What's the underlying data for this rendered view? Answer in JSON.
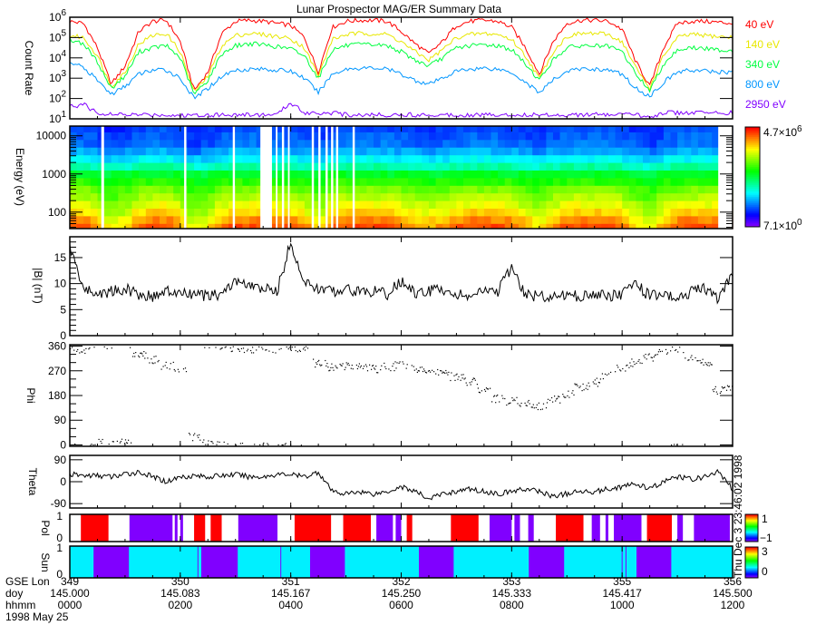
{
  "title": "Lunar Prospector MAG/ER Summary Data",
  "footer": {
    "row_labels": [
      "GSE Lon",
      "doy",
      "hhmm"
    ],
    "date": "1998 May 25",
    "gse_lon": [
      "349",
      "350",
      "351",
      "352",
      "353",
      "355",
      "356"
    ],
    "doy": [
      "145.000",
      "145.083",
      "145.167",
      "145.250",
      "145.333",
      "145.417",
      "145.500"
    ],
    "hhmm": [
      "0000",
      "0200",
      "0400",
      "0600",
      "0800",
      "1000",
      "1200"
    ]
  },
  "timestamp": "Thu Dec 3 23:46:02 1998",
  "colors": {
    "40": "#ff0000",
    "140": "#e8e800",
    "340": "#00ff40",
    "800": "#0096ff",
    "2950": "#8000ff",
    "pol_pos": "#ff0000",
    "pol_neg": "#8000ff",
    "sun_lit": "#00f0ff",
    "sun_shadow": "#8000ff"
  },
  "chart_data": [
    {
      "type": "line",
      "panel": "count-rate",
      "ylabel": "Count Rate",
      "yscale": "log",
      "ylim_log10": [
        1,
        6
      ],
      "ytick_labels": [
        "10",
        "10",
        "10",
        "10",
        "10",
        "10"
      ],
      "ytick_exponents": [
        "1",
        "2",
        "3",
        "4",
        "5",
        "6"
      ],
      "x_hours_step": 0.25,
      "series": [
        {
          "name": "40 eV",
          "key": "40",
          "log10_values": [
            5.8,
            5.7,
            4.5,
            2.7,
            3.6,
            5.3,
            5.8,
            5.85,
            4.8,
            2.4,
            3.3,
            5.2,
            5.8,
            5.85,
            5.8,
            5.7,
            5.6,
            5.0,
            3.3,
            5.5,
            5.8,
            5.85,
            5.85,
            5.8,
            5.3,
            4.7,
            4.2,
            4.8,
            5.6,
            5.8,
            5.85,
            5.8,
            5.5,
            4.5,
            3.2,
            4.8,
            5.7,
            5.85,
            5.85,
            5.8,
            5.4,
            3.8,
            2.6,
            4.5,
            5.7,
            5.8,
            5.8,
            5.75,
            5.7
          ]
        },
        {
          "name": "140 eV",
          "key": "140",
          "log10_values": [
            5.1,
            5.0,
            4.1,
            2.6,
            3.3,
            4.7,
            5.1,
            5.2,
            4.3,
            2.3,
            3.1,
            4.6,
            5.1,
            5.2,
            5.15,
            5.05,
            4.95,
            4.5,
            3.1,
            4.9,
            5.15,
            5.2,
            5.2,
            5.15,
            4.8,
            4.3,
            3.9,
            4.4,
            5.0,
            5.15,
            5.2,
            5.15,
            4.9,
            4.1,
            3.0,
            4.3,
            5.05,
            5.2,
            5.2,
            5.15,
            4.8,
            3.5,
            2.5,
            4.1,
            5.0,
            5.15,
            5.1,
            5.05,
            5.0
          ]
        },
        {
          "name": "340 eV",
          "key": "340",
          "log10_values": [
            4.9,
            4.7,
            3.8,
            2.5,
            3.1,
            4.3,
            4.5,
            4.6,
            4.0,
            2.2,
            2.9,
            4.2,
            4.6,
            4.7,
            4.65,
            4.55,
            4.45,
            4.1,
            3.0,
            4.4,
            4.6,
            4.65,
            4.65,
            4.6,
            4.3,
            3.9,
            3.6,
            4.0,
            4.5,
            4.6,
            4.65,
            4.6,
            4.4,
            3.7,
            2.9,
            3.9,
            4.5,
            4.6,
            4.6,
            4.55,
            4.3,
            3.2,
            2.4,
            3.7,
            4.4,
            4.5,
            4.45,
            4.4,
            4.35
          ]
        },
        {
          "name": "800 eV",
          "key": "800",
          "log10_values": [
            3.8,
            3.5,
            2.9,
            2.2,
            2.6,
            3.2,
            3.4,
            3.4,
            3.0,
            2.0,
            2.5,
            3.1,
            3.4,
            3.45,
            3.45,
            3.4,
            3.35,
            3.0,
            2.3,
            3.2,
            3.45,
            3.5,
            3.5,
            3.45,
            3.2,
            2.9,
            2.7,
            3.0,
            3.35,
            3.45,
            3.5,
            3.45,
            3.3,
            2.8,
            2.3,
            2.9,
            3.35,
            3.45,
            3.45,
            3.4,
            3.2,
            2.5,
            2.1,
            2.8,
            3.3,
            3.4,
            3.35,
            3.3,
            3.3
          ]
        },
        {
          "name": "2950 eV",
          "key": "2950",
          "log10_values": [
            1.6,
            1.7,
            1.3,
            1.2,
            1.2,
            1.2,
            1.2,
            1.2,
            1.15,
            1.2,
            1.2,
            1.2,
            1.2,
            1.2,
            1.2,
            1.2,
            1.8,
            1.3,
            1.3,
            1.3,
            1.2,
            1.2,
            1.2,
            1.2,
            1.2,
            1.2,
            1.2,
            1.2,
            1.2,
            1.2,
            1.2,
            1.2,
            1.2,
            1.2,
            1.2,
            1.2,
            1.2,
            1.2,
            1.2,
            1.2,
            1.2,
            1.2,
            1.1,
            1.3,
            1.3,
            1.3,
            1.3,
            1.3,
            1.3
          ]
        }
      ]
    },
    {
      "type": "heatmap",
      "panel": "energy-spectrogram",
      "ylabel": "Energy (eV)",
      "ylim": [
        37,
        18000
      ],
      "ytick_labels": [
        "10000",
        "1000",
        "100"
      ],
      "ytick_values": [
        10000,
        1000,
        100
      ],
      "colorbar_max": "4.7×10",
      "colorbar_max_exp": "6",
      "colorbar_min": "7.1×10",
      "colorbar_min_exp": "0",
      "colorbar_log10_range": [
        0.85,
        6.67
      ],
      "spectrum_log10_energy": [
        1.6,
        1.8,
        2.0,
        2.2,
        2.4,
        2.6,
        2.8,
        3.0,
        3.2,
        3.4,
        3.6,
        3.8,
        4.0,
        4.2
      ],
      "spectrum_log10_intensity": [
        6.3,
        6.0,
        5.6,
        5.3,
        5.0,
        4.7,
        4.3,
        3.9,
        3.3,
        2.8,
        2.4,
        2.1,
        2.0,
        1.9
      ],
      "data_gaps_hours": [
        [
          0.57,
          0.62
        ],
        [
          2.07,
          2.11
        ],
        [
          2.95,
          2.99
        ],
        [
          3.45,
          3.66
        ],
        [
          3.73,
          3.76
        ],
        [
          3.84,
          3.88
        ],
        [
          3.95,
          3.98
        ],
        [
          4.38,
          4.42
        ],
        [
          4.5,
          4.54
        ],
        [
          4.63,
          4.67
        ],
        [
          4.73,
          4.77
        ],
        [
          4.82,
          4.86
        ],
        [
          5.12,
          5.16
        ],
        [
          11.74,
          12.0
        ]
      ]
    },
    {
      "type": "line",
      "panel": "field-magnitude",
      "ylabel": "|B| (nT)",
      "ylim": [
        0,
        19
      ],
      "ytick_labels": [
        "0",
        "5",
        "10",
        "15"
      ],
      "ytick_values": [
        0,
        5,
        10,
        15
      ],
      "x_hours_step": 0.25,
      "values": [
        17,
        9,
        8,
        8.5,
        9,
        8,
        7.5,
        8.5,
        8,
        8,
        7.5,
        8,
        10.5,
        9.5,
        9,
        8.5,
        18,
        10,
        9,
        8.5,
        9,
        8.5,
        8.5,
        8,
        10.5,
        8,
        8.5,
        9,
        8,
        7.5,
        8.5,
        8.5,
        13,
        8,
        7.5,
        7.5,
        8,
        7.5,
        8,
        7.5,
        8,
        10,
        7.5,
        8,
        7,
        8.5,
        9,
        7,
        12
      ]
    },
    {
      "type": "scatter",
      "panel": "phi",
      "ylabel": "Phi",
      "ylim": [
        -5,
        365
      ],
      "ytick_labels": [
        "0",
        "90",
        "180",
        "270",
        "360"
      ],
      "ytick_values": [
        0,
        90,
        180,
        270,
        360
      ],
      "x_hours_step": 0.25,
      "values": [
        355,
        350,
        10,
        5,
        10,
        330,
        310,
        290,
        280,
        30,
        10,
        5,
        355,
        350,
        355,
        350,
        355,
        350,
        300,
        285,
        290,
        290,
        280,
        285,
        290,
        280,
        270,
        265,
        250,
        230,
        200,
        170,
        160,
        150,
        145,
        165,
        190,
        210,
        230,
        255,
        280,
        300,
        320,
        340,
        350,
        320,
        300,
        200,
        210
      ]
    },
    {
      "type": "line",
      "panel": "theta",
      "ylabel": "Theta",
      "ylim": [
        -108,
        108
      ],
      "ytick_labels": [
        "-90",
        "0",
        "90"
      ],
      "ytick_values": [
        -90,
        0,
        90
      ],
      "x_hours_step": 0.25,
      "values": [
        30,
        25,
        25,
        20,
        30,
        40,
        20,
        0,
        20,
        25,
        20,
        25,
        30,
        20,
        20,
        30,
        30,
        20,
        40,
        -40,
        -50,
        -40,
        -50,
        -40,
        -20,
        -40,
        -70,
        -50,
        -40,
        -30,
        -40,
        -50,
        -40,
        -30,
        -40,
        -60,
        -50,
        -40,
        -40,
        -30,
        -20,
        -10,
        -30,
        0,
        20,
        10,
        20,
        40,
        -30
      ]
    },
    {
      "type": "bar",
      "panel": "polarity",
      "ylabel": "Pol",
      "ytick_labels": [
        "0",
        "1"
      ],
      "colorbar_labels": [
        "1",
        "−1"
      ],
      "segments_hours": [
        [
          0.2,
          0.7,
          1
        ],
        [
          1.08,
          1.86,
          -1
        ],
        [
          1.9,
          1.95,
          -1
        ],
        [
          2.0,
          2.05,
          -1
        ],
        [
          2.25,
          2.45,
          1
        ],
        [
          2.55,
          2.75,
          1
        ],
        [
          3.05,
          3.76,
          -1
        ],
        [
          4.07,
          4.73,
          1
        ],
        [
          4.95,
          5.45,
          1
        ],
        [
          5.55,
          5.85,
          -1
        ],
        [
          5.9,
          6.0,
          -1
        ],
        [
          6.1,
          6.2,
          1
        ],
        [
          6.9,
          7.4,
          1
        ],
        [
          7.6,
          8.0,
          -1
        ],
        [
          8.05,
          8.15,
          -1
        ],
        [
          8.3,
          8.4,
          -1
        ],
        [
          8.8,
          9.3,
          1
        ],
        [
          9.45,
          9.6,
          -1
        ],
        [
          9.7,
          9.75,
          -1
        ],
        [
          9.85,
          10.35,
          -1
        ],
        [
          10.45,
          10.9,
          1
        ],
        [
          11.0,
          11.1,
          -1
        ],
        [
          11.3,
          11.95,
          -1
        ]
      ]
    },
    {
      "type": "bar",
      "panel": "sun",
      "ylabel": "Sun",
      "ytick_labels": [
        "0",
        "1"
      ],
      "colorbar_labels": [
        "3",
        "0"
      ],
      "shadow_segments_hours": [
        [
          0.43,
          1.07
        ],
        [
          2.38,
          3.04
        ],
        [
          4.35,
          4.98
        ],
        [
          6.32,
          6.95
        ],
        [
          8.31,
          8.95
        ],
        [
          10.26,
          10.89
        ]
      ],
      "thin_lines_hours": [
        2.32,
        3.82,
        10.0,
        10.07
      ]
    }
  ]
}
